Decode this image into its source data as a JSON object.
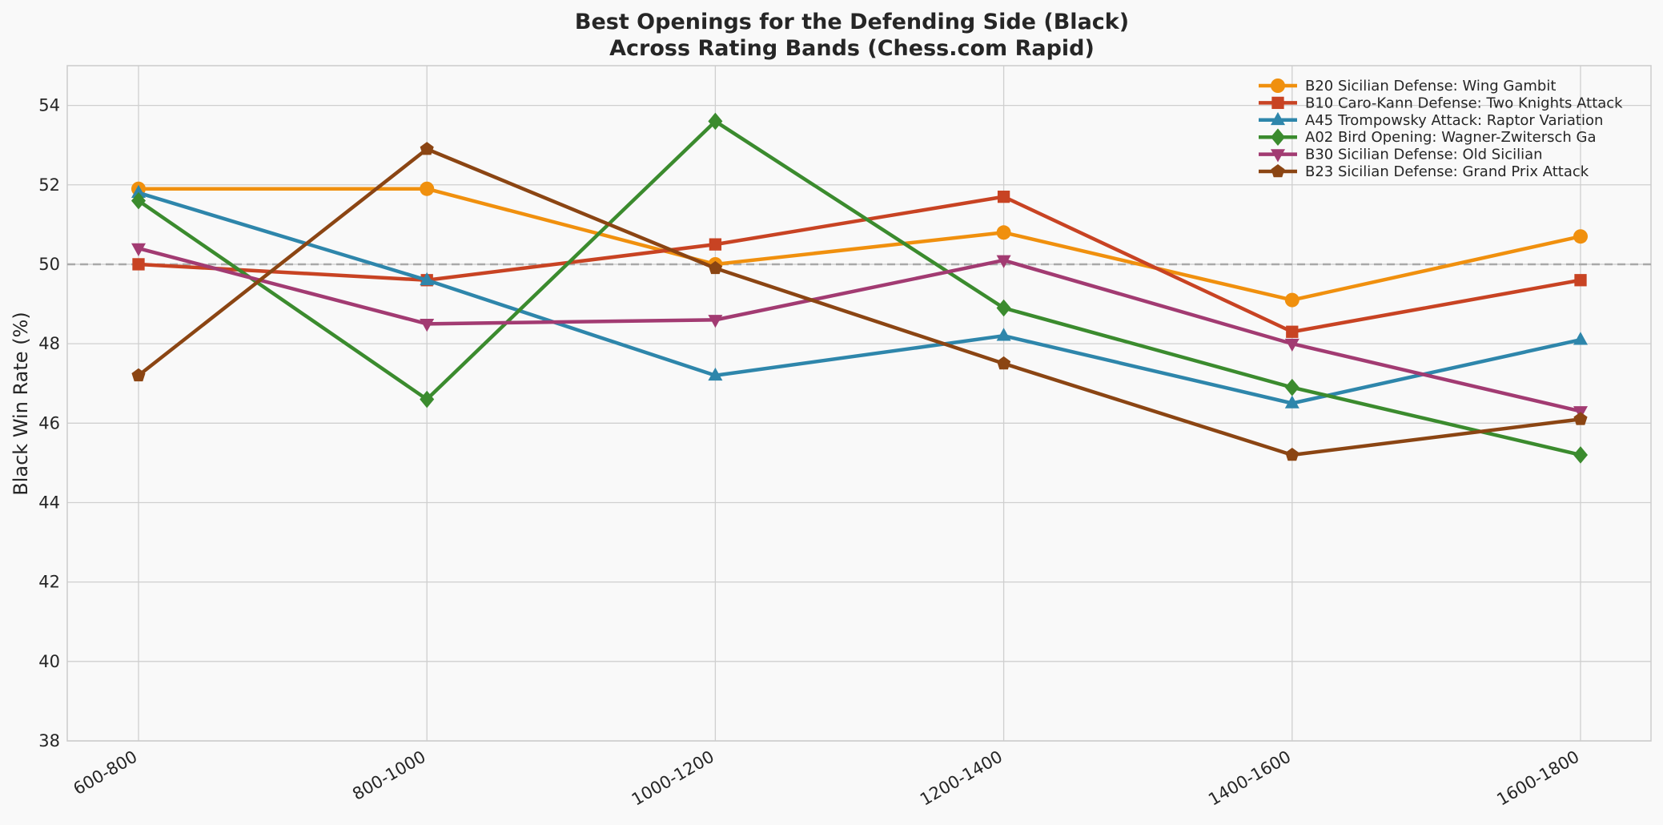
{
  "chart_data": {
    "type": "line",
    "title_line1": "Best Openings for the Defending Side (Black)",
    "title_line2": "Across Rating Bands (Chess.com Rapid)",
    "xlabel": "",
    "ylabel": "Black Win Rate (%)",
    "categories": [
      "600-800",
      "800-1000",
      "1000-1200",
      "1200-1400",
      "1400-1600",
      "1600-1800"
    ],
    "ylim": [
      38,
      55
    ],
    "yticks": [
      38,
      40,
      42,
      44,
      46,
      48,
      50,
      52,
      54
    ],
    "reference_line": 50,
    "grid": true,
    "legend_position": "top-right",
    "series": [
      {
        "name": "B20 Sicilian Defense:  Wing Gambit",
        "color": "#F0900E",
        "marker": "circle",
        "values": [
          51.9,
          51.9,
          50.0,
          50.8,
          49.1,
          50.7
        ]
      },
      {
        "name": "B10 Caro-Kann Defense:  Two Knights Attack",
        "color": "#C84323",
        "marker": "square",
        "values": [
          50.0,
          49.6,
          50.5,
          51.7,
          48.3,
          49.6
        ]
      },
      {
        "name": "A45 Trompowsky Attack:  Raptor Variation",
        "color": "#2E86AB",
        "marker": "triangle-up",
        "values": [
          51.8,
          49.6,
          47.2,
          48.2,
          46.5,
          48.1
        ]
      },
      {
        "name": "A02 Bird Opening:  Wagner-Zwitersch Ga",
        "color": "#3B8B2E",
        "marker": "diamond",
        "values": [
          51.6,
          46.6,
          53.6,
          48.9,
          46.9,
          45.2
        ]
      },
      {
        "name": "B30 Sicilian Defense:  Old Sicilian",
        "color": "#A23B72",
        "marker": "triangle-down",
        "values": [
          50.4,
          48.5,
          48.6,
          50.1,
          48.0,
          46.3
        ]
      },
      {
        "name": "B23 Sicilian Defense:  Grand Prix Attack",
        "color": "#8B4513",
        "marker": "pentagon",
        "values": [
          47.2,
          52.9,
          49.9,
          47.5,
          45.2,
          46.1
        ]
      }
    ]
  }
}
